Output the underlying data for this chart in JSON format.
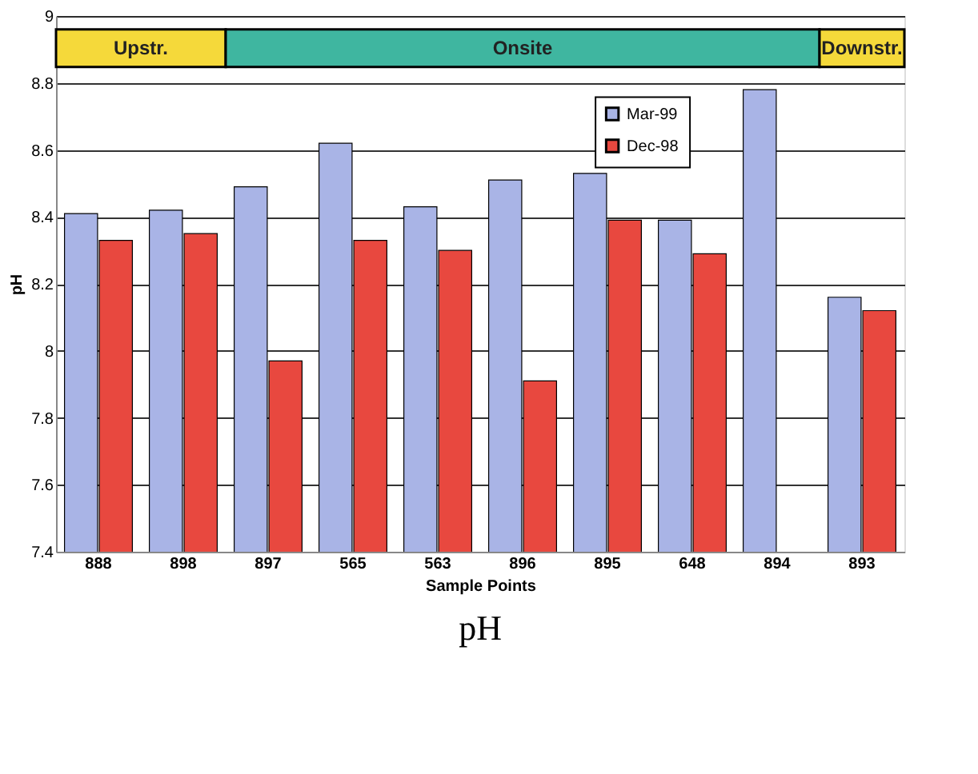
{
  "chart_data": {
    "type": "bar",
    "title": "pH",
    "xlabel": "Sample Points",
    "ylabel": "pH",
    "categories": [
      "888",
      "898",
      "897",
      "565",
      "563",
      "896",
      "895",
      "648",
      "894",
      "893"
    ],
    "series": [
      {
        "name": "Mar-99",
        "color": "#a9b4e6",
        "values": [
          8.41,
          8.42,
          8.49,
          8.62,
          8.43,
          8.51,
          8.53,
          8.39,
          8.78,
          8.16
        ]
      },
      {
        "name": "Dec-98",
        "color": "#e8483f",
        "values": [
          8.33,
          8.35,
          7.97,
          8.33,
          8.3,
          7.91,
          8.39,
          8.29,
          null,
          8.12
        ]
      }
    ],
    "bands": [
      {
        "axis": "x",
        "from": "888",
        "to": "898",
        "label": "Upstr.",
        "color": "#f5d93a"
      },
      {
        "axis": "x",
        "from": "897",
        "to": "894",
        "label": "Onsite",
        "color": "#3fb6a0"
      },
      {
        "axis": "x",
        "from": "893",
        "to": "893",
        "label": "Downstr.",
        "color": "#f5d93a"
      }
    ],
    "ylim": [
      7.4,
      9
    ],
    "yticks": [
      7.4,
      7.6,
      7.8,
      8,
      8.2,
      8.4,
      8.6,
      8.8,
      9
    ],
    "grid": "y",
    "legend": "top right"
  }
}
